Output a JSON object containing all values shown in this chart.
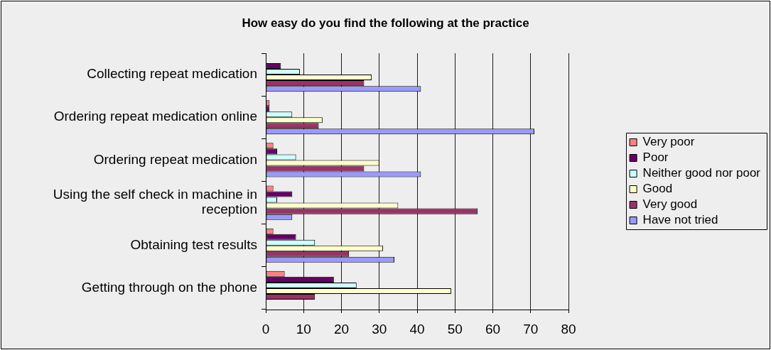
{
  "chart_data": {
    "type": "bar",
    "orientation": "horizontal",
    "title": "How easy do you find the following at the practice",
    "categories": [
      "Collecting repeat medication",
      "Ordering repeat medication online",
      "Ordering repeat medication",
      "Using the self check in machine in reception",
      "Obtaining test results",
      "Getting through on the phone"
    ],
    "series": [
      {
        "name": "Very poor",
        "color": "#ff8080",
        "values": [
          0,
          1,
          2,
          2,
          2,
          5
        ]
      },
      {
        "name": "Poor",
        "color": "#660066",
        "values": [
          4,
          1,
          3,
          7,
          8,
          18
        ]
      },
      {
        "name": "Neither good nor poor",
        "color": "#ccffff",
        "values": [
          9,
          7,
          8,
          3,
          13,
          24
        ]
      },
      {
        "name": "Good",
        "color": "#ffffcc",
        "values": [
          28,
          15,
          30,
          35,
          31,
          49
        ]
      },
      {
        "name": "Very good",
        "color": "#993366",
        "values": [
          26,
          14,
          26,
          56,
          22,
          13
        ]
      },
      {
        "name": "Have not tried",
        "color": "#9999ff",
        "values": [
          41,
          71,
          41,
          7,
          34,
          0
        ]
      }
    ],
    "xlim": [
      0,
      80
    ],
    "xticks": [
      0,
      10,
      20,
      30,
      40,
      50,
      60,
      70,
      80
    ],
    "grid": "x",
    "legend": "right"
  }
}
